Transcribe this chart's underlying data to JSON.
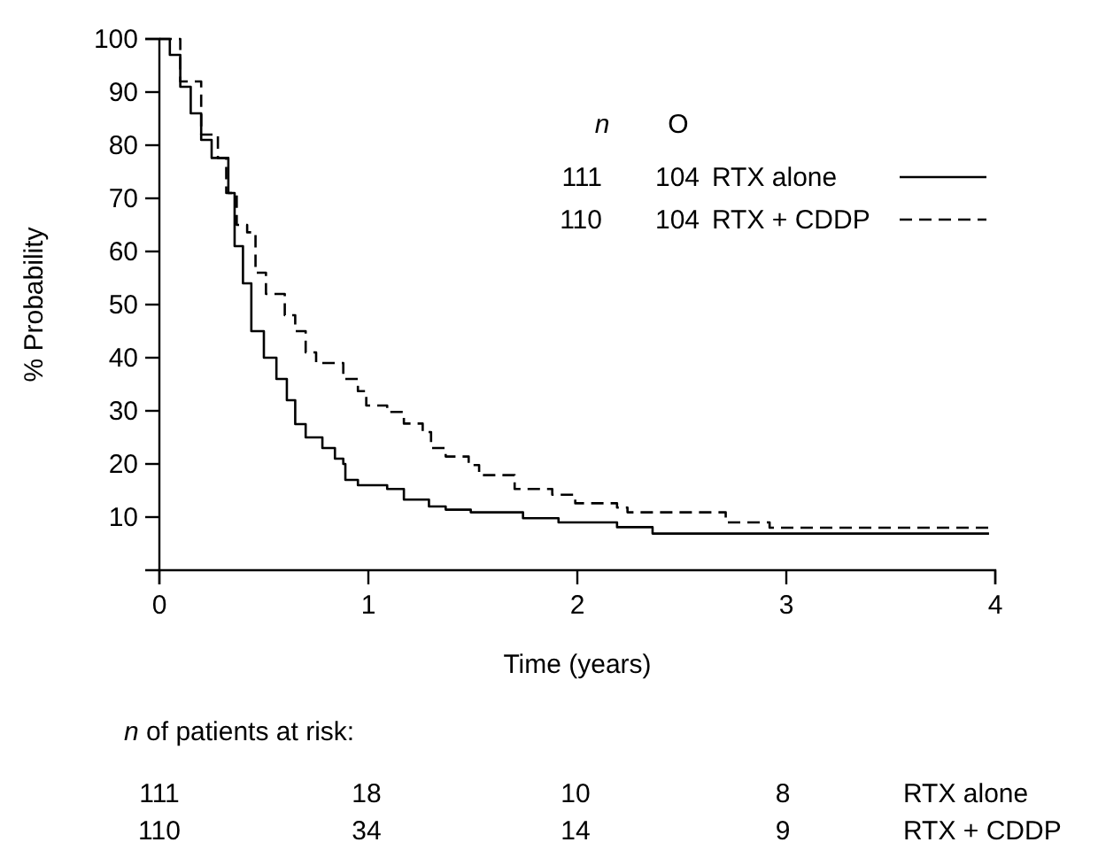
{
  "chart_data": {
    "type": "step",
    "xlabel": "Time (years)",
    "ylabel": "% Probability",
    "xlim": [
      0,
      4
    ],
    "xticks": [
      0,
      1,
      2,
      3,
      4
    ],
    "ylim": [
      0,
      100
    ],
    "yticks": [
      10,
      20,
      30,
      40,
      50,
      60,
      70,
      80,
      90,
      100
    ],
    "grid": false,
    "legend": "top right",
    "legend_title": "n O",
    "series": [
      {
        "name": "RTX alone",
        "color": "#000000",
        "line_style": "solid",
        "x": [
          0,
          0.05,
          0.1,
          0.15,
          0.2,
          0.25,
          0.33,
          0.36,
          0.4,
          0.44,
          0.5,
          0.56,
          0.61,
          0.65,
          0.7,
          0.78,
          0.84,
          0.88,
          0.89,
          0.95,
          1.09,
          1.17,
          1.29,
          1.37,
          1.49,
          1.74,
          1.91,
          2.19,
          2.36,
          3.97
        ],
        "values": [
          100,
          97,
          91,
          86,
          81,
          77.6,
          71,
          61,
          54,
          45,
          40,
          36,
          32,
          27.5,
          25,
          23,
          21,
          20,
          17,
          16,
          15.3,
          13.3,
          12,
          11.4,
          10.9,
          9.8,
          9,
          8.1,
          6.9,
          6.9
        ]
      },
      {
        "name": "RTX + CDDP",
        "color": "#000000",
        "line_style": "dashed",
        "x": [
          0,
          0.1,
          0.2,
          0.28,
          0.32,
          0.37,
          0.42,
          0.46,
          0.51,
          0.6,
          0.65,
          0.7,
          0.75,
          0.88,
          0.95,
          0.99,
          1.09,
          1.17,
          1.26,
          1.3,
          1.37,
          1.48,
          1.53,
          1.7,
          1.88,
          1.99,
          2.19,
          2.24,
          2.71,
          2.92,
          3.97
        ],
        "values": [
          100,
          92,
          82,
          77.6,
          71,
          65,
          63.6,
          56,
          52,
          48,
          45,
          41,
          39,
          36,
          33.7,
          31,
          29.8,
          27.6,
          26,
          23,
          21.4,
          19.8,
          17.9,
          15.3,
          14.2,
          12.6,
          11.8,
          10.9,
          9,
          8,
          8
        ]
      }
    ],
    "annotations": [
      "111",
      "104",
      "110",
      "104",
      "n of patients at risk:",
      "111",
      "18",
      "10",
      "8",
      "110",
      "34",
      "14",
      "9"
    ]
  }
}
